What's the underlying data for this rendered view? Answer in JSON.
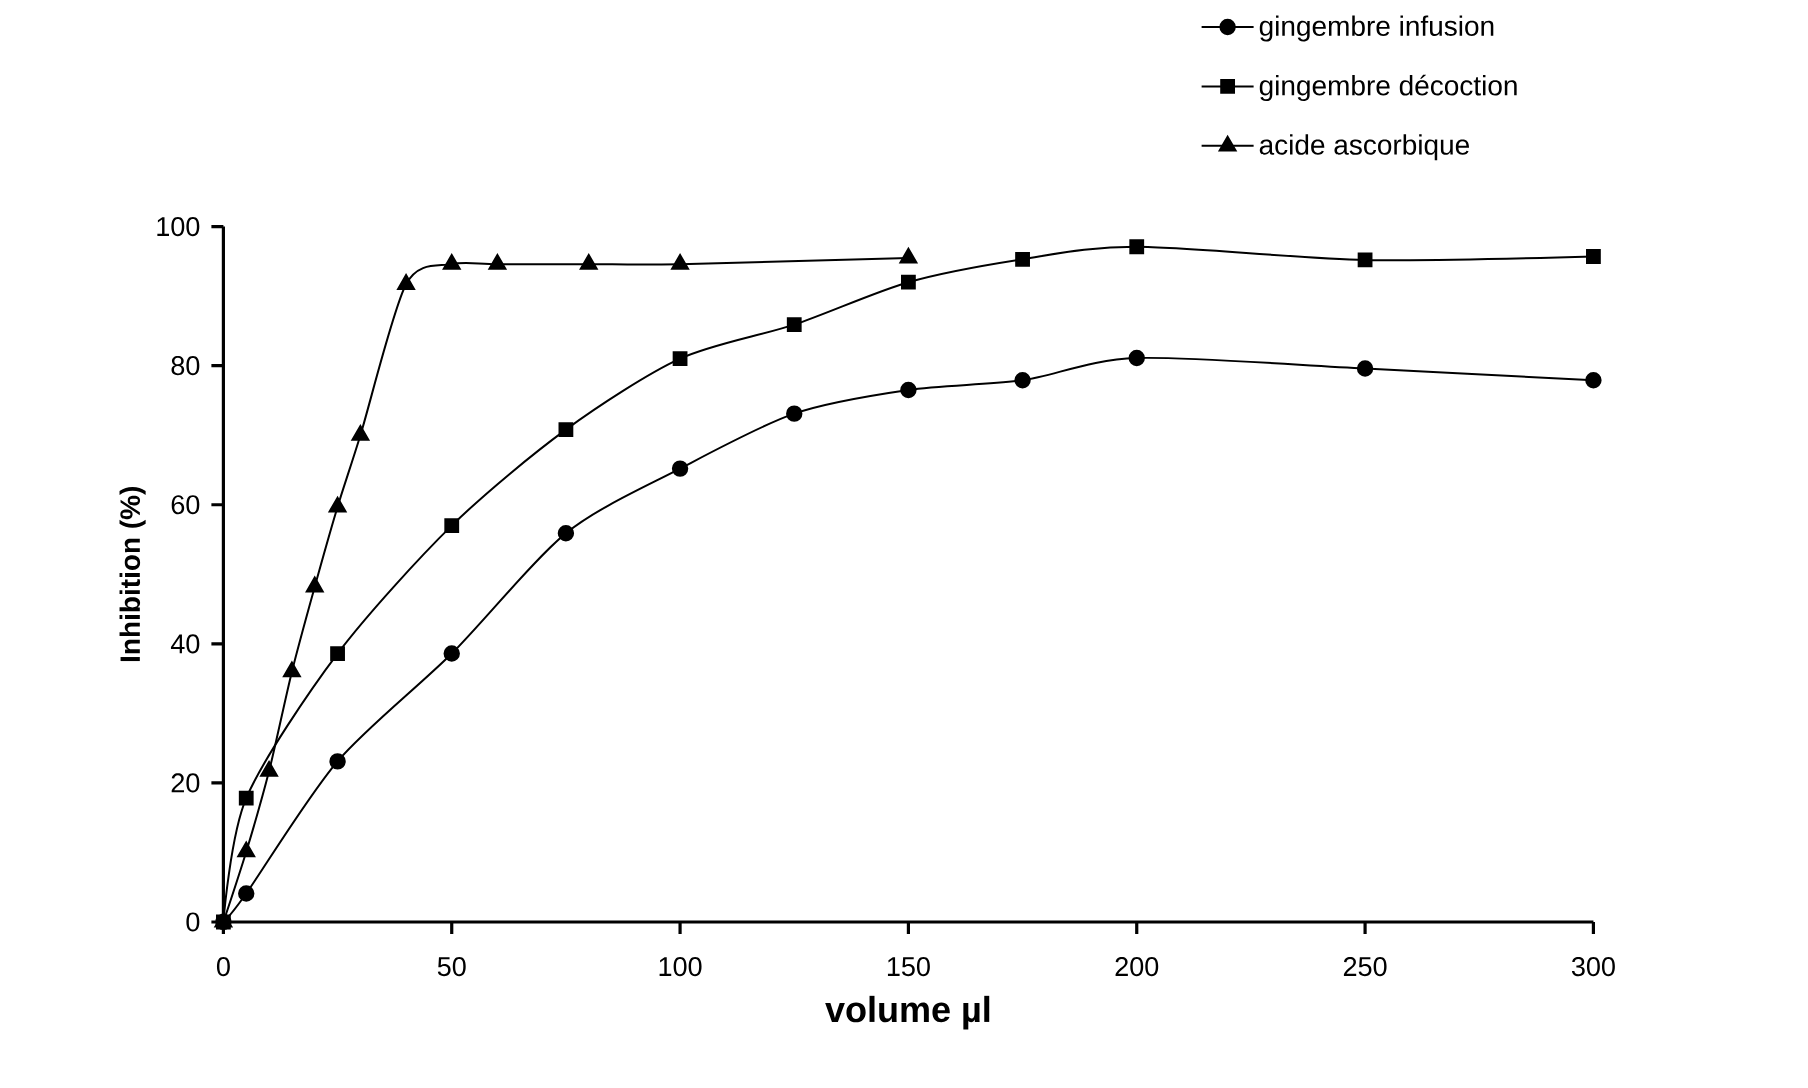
{
  "chart_data": {
    "type": "line",
    "xlabel": "volume µl",
    "ylabel": "Inhibition (%)",
    "xlim": [
      0,
      300
    ],
    "xticks": [
      0,
      50,
      100,
      150,
      200,
      250,
      300
    ],
    "ylim": [
      0,
      100
    ],
    "yticks": [
      0,
      20,
      40,
      60,
      80,
      100
    ],
    "grid": false,
    "legend": "top right",
    "line_style": "solid",
    "series": [
      {
        "name": "gingembre infusion",
        "color": "#000000",
        "marker": "circle",
        "x": [
          0,
          5,
          25,
          50,
          75,
          100,
          125,
          150,
          175,
          200,
          250,
          300
        ],
        "values": [
          0,
          4.1,
          23.1,
          38.6,
          55.9,
          65.2,
          73.1,
          76.5,
          77.9,
          81.1,
          79.6,
          77.9
        ]
      },
      {
        "name": "gingembre décoction",
        "color": "#000000",
        "marker": "square",
        "x": [
          0,
          5,
          25,
          50,
          75,
          100,
          125,
          150,
          175,
          200,
          250,
          300
        ],
        "values": [
          0,
          17.8,
          38.6,
          57.0,
          70.8,
          81.0,
          85.9,
          92.0,
          95.3,
          97.1,
          95.2,
          95.7
        ]
      },
      {
        "name": "acide ascorbique",
        "color": "#000000",
        "marker": "triangle",
        "x": [
          0,
          5,
          10,
          15,
          20,
          25,
          30,
          40,
          50,
          60,
          80,
          100,
          150
        ],
        "values": [
          0,
          10.1,
          21.7,
          36.0,
          48.2,
          59.7,
          70.0,
          91.7,
          94.6,
          94.6,
          94.6,
          94.6,
          95.5
        ]
      }
    ]
  }
}
